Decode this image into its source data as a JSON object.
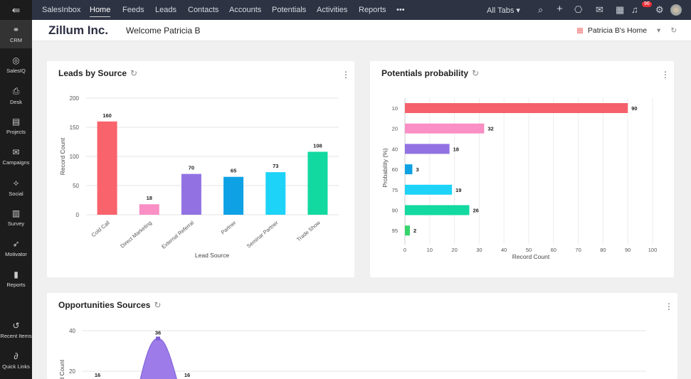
{
  "topnav": {
    "menu_icon": "collapse-menu-icon",
    "items": [
      "SalesInbox",
      "Home",
      "Feeds",
      "Leads",
      "Contacts",
      "Accounts",
      "Potentials",
      "Activities",
      "Reports"
    ],
    "active": "Home",
    "more": "•••",
    "all_tabs": "All Tabs ▾",
    "notification_count": "96"
  },
  "sidebar": {
    "items": [
      {
        "label": "CRM",
        "icon": "handshake-icon"
      },
      {
        "label": "SalesIQ",
        "icon": "salesiq-icon"
      },
      {
        "label": "Desk",
        "icon": "desk-icon"
      },
      {
        "label": "Projects",
        "icon": "projects-icon"
      },
      {
        "label": "Campaigns",
        "icon": "campaigns-icon"
      },
      {
        "label": "Social",
        "icon": "social-icon"
      },
      {
        "label": "Survey",
        "icon": "survey-icon"
      },
      {
        "label": "Motivator",
        "icon": "motivator-icon"
      },
      {
        "label": "Reports",
        "icon": "reports-icon"
      }
    ],
    "bottom": [
      {
        "label": "Recent Items",
        "icon": "history-icon"
      },
      {
        "label": "Quick Links",
        "icon": "link-icon"
      }
    ]
  },
  "header": {
    "company": "Zillum Inc.",
    "welcome": "Welcome Patricia B",
    "home_selector": "Patricia B's Home"
  },
  "chart_data": [
    {
      "type": "bar",
      "title": "Leads by Source",
      "xlabel": "Lead Source",
      "ylabel": "Record Count",
      "ylim": [
        0,
        200
      ],
      "yticks": [
        0,
        50,
        100,
        150,
        200
      ],
      "grid": true,
      "categories": [
        "Cold Call",
        "Direct Marketing",
        "External Referral",
        "Partner",
        "Seminar Partner",
        "Trade Show"
      ],
      "values": [
        160,
        18,
        70,
        65,
        73,
        108
      ],
      "colors": [
        "#f9636b",
        "#f98fc4",
        "#9272e3",
        "#0ea1e4",
        "#1dd3f7",
        "#12d9a0"
      ]
    },
    {
      "type": "bar",
      "orientation": "horizontal",
      "title": "Potentials probability",
      "xlabel": "Record Count",
      "ylabel": "Probability (%)",
      "xlim": [
        0,
        100
      ],
      "xticks": [
        0,
        10,
        20,
        30,
        40,
        50,
        60,
        70,
        80,
        90,
        100
      ],
      "grid": true,
      "categories": [
        "10",
        "20",
        "40",
        "60",
        "75",
        "90",
        "95"
      ],
      "values": [
        90,
        32,
        18,
        3,
        19,
        26,
        2
      ],
      "colors": [
        "#f5616a",
        "#f98fc4",
        "#9272e3",
        "#0ea1e4",
        "#1dd3f7",
        "#12d9a0",
        "#35d46a"
      ]
    },
    {
      "type": "area",
      "title": "Opportunities Sources",
      "ylabel": "Record Count",
      "yticks": [
        20,
        40
      ],
      "grid": true,
      "values": [
        16,
        36,
        16
      ],
      "color": "#9d7be8"
    }
  ]
}
